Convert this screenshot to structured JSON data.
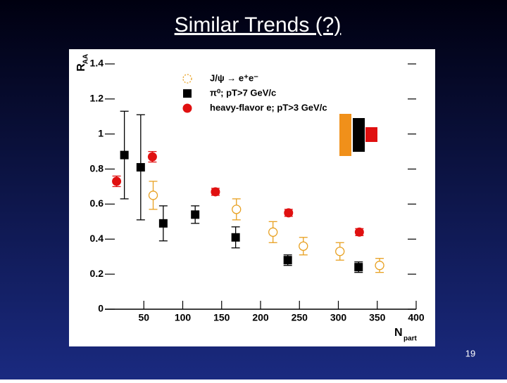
{
  "slide_title": "Similar Trends (?)",
  "page_number": "19",
  "chart_data": {
    "type": "scatter",
    "ylabel": "R",
    "ylabel_sub": "AA",
    "xlabel": "N",
    "xlabel_sub": "part",
    "xlim": [
      0,
      400
    ],
    "ylim": [
      0,
      1.46
    ],
    "xticks": [
      50,
      100,
      150,
      200,
      250,
      300,
      350,
      400
    ],
    "yticks": [
      0,
      0.2,
      0.4,
      0.6,
      0.8,
      1,
      1.2,
      1.4
    ],
    "series": [
      {
        "name": "J/ψ → e⁺e⁻",
        "color": "#e8a020",
        "marker": "open-circle",
        "x": [
          62,
          169,
          216,
          255,
          302,
          353
        ],
        "values": [
          0.65,
          0.57,
          0.44,
          0.36,
          0.33,
          0.25
        ],
        "errors": [
          0.08,
          0.06,
          0.06,
          0.05,
          0.05,
          0.04
        ]
      },
      {
        "name": "π⁰; pT>7 GeV/c",
        "color": "#000000",
        "marker": "square",
        "x": [
          25,
          46,
          75,
          116,
          168,
          235,
          326
        ],
        "values": [
          0.88,
          0.81,
          0.49,
          0.54,
          0.41,
          0.28,
          0.24
        ],
        "errors": [
          0.25,
          0.3,
          0.1,
          0.05,
          0.06,
          0.03,
          0.03
        ]
      },
      {
        "name": "heavy-flavor e; pT>3 GeV/c",
        "color": "#e01010",
        "marker": "circle",
        "x": [
          15,
          61,
          142,
          236,
          327
        ],
        "values": [
          0.73,
          0.87,
          0.67,
          0.55,
          0.44
        ],
        "errors": [
          0.03,
          0.03,
          0.02,
          0.02,
          0.02
        ]
      }
    ]
  }
}
